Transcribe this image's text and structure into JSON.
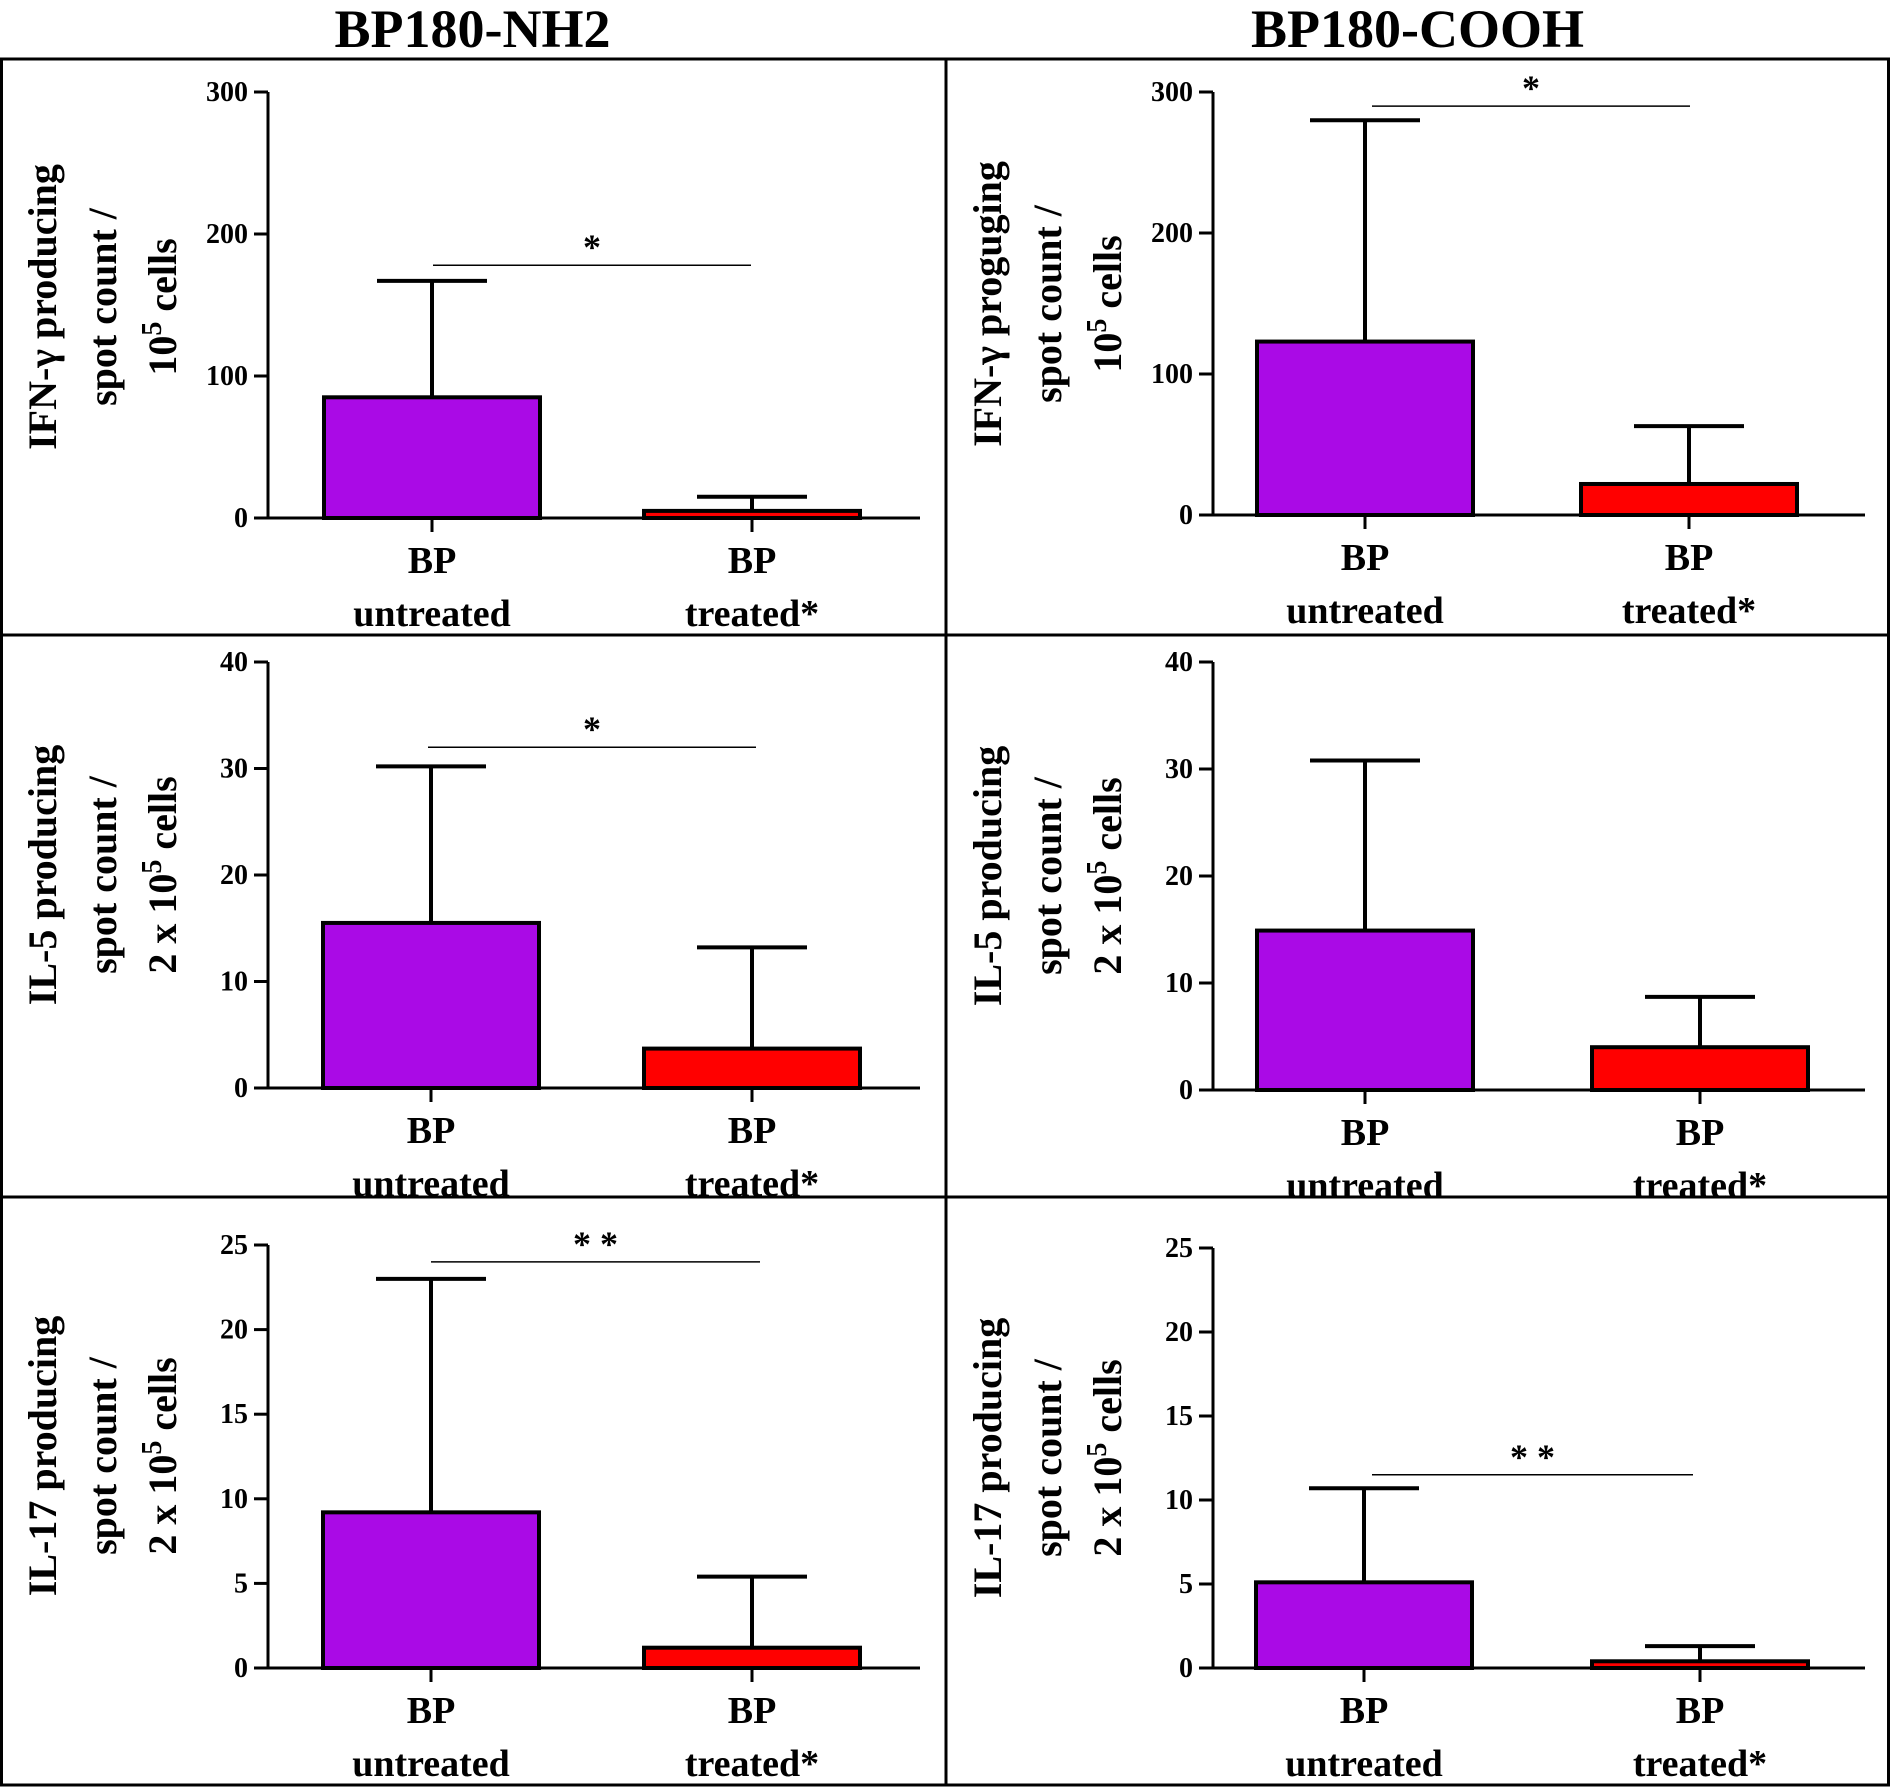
{
  "column_titles": [
    "BP180-NH2",
    "BP180-COOH"
  ],
  "colors": {
    "untreated": "#aa0ae6",
    "treated": "#ff0000",
    "outline": "#000000"
  },
  "chart_data": [
    {
      "type": "bar",
      "panel": "IFN-NH2",
      "categories": [
        [
          "BP",
          "untreated"
        ],
        [
          "BP",
          "treated*"
        ]
      ],
      "values": [
        85,
        5
      ],
      "error_upper": [
        167,
        15
      ],
      "ylabel": [
        "IFN-γ producing",
        "spot count /",
        "10^5 cells"
      ],
      "ylim": [
        0,
        300
      ],
      "ticks": [
        0,
        100,
        200,
        300
      ],
      "significance": {
        "label": "*",
        "y": 178
      }
    },
    {
      "type": "bar",
      "panel": "IFN-COOH",
      "categories": [
        [
          "BP",
          "untreated"
        ],
        [
          "BP",
          "treated*"
        ]
      ],
      "values": [
        123,
        22
      ],
      "error_upper": [
        280,
        63
      ],
      "ylabel": [
        "IFN-γ proguging",
        "spot count /",
        "10^5 cells"
      ],
      "ylim": [
        0,
        300
      ],
      "ticks": [
        0,
        100,
        200,
        300
      ],
      "significance": {
        "label": "*",
        "y": 290
      }
    },
    {
      "type": "bar",
      "panel": "IL5-NH2",
      "categories": [
        [
          "BP",
          "untreated"
        ],
        [
          "BP",
          "treated*"
        ]
      ],
      "values": [
        15.5,
        3.7
      ],
      "error_upper": [
        30.2,
        13.2
      ],
      "ylabel": [
        "IL-5 producing",
        "spot count /",
        "2 x 10^5 cells"
      ],
      "ylim": [
        0,
        40
      ],
      "ticks": [
        0,
        10,
        20,
        30,
        40
      ],
      "significance": {
        "label": "*",
        "y": 32
      }
    },
    {
      "type": "bar",
      "panel": "IL5-COOH",
      "categories": [
        [
          "BP",
          "untreated"
        ],
        [
          "BP",
          "treated*"
        ]
      ],
      "values": [
        14.9,
        4.0
      ],
      "error_upper": [
        30.8,
        8.7
      ],
      "ylabel": [
        "IL-5 producing",
        "spot count /",
        "2 x 10^5 cells"
      ],
      "ylim": [
        0,
        40
      ],
      "ticks": [
        0,
        10,
        20,
        30,
        40
      ]
    },
    {
      "type": "bar",
      "panel": "IL17-NH2",
      "categories": [
        [
          "BP",
          "untreated"
        ],
        [
          "BP",
          "treated*"
        ]
      ],
      "values": [
        9.2,
        1.2
      ],
      "error_upper": [
        23,
        5.4
      ],
      "ylabel": [
        "IL-17 producing",
        "spot count /",
        "2 x 10^5 cells"
      ],
      "ylim": [
        0,
        25
      ],
      "ticks": [
        0,
        5,
        10,
        15,
        20,
        25
      ],
      "significance": {
        "label": "* *",
        "y": 24.0
      }
    },
    {
      "type": "bar",
      "panel": "IL17-COOH",
      "categories": [
        [
          "BP",
          "untreated"
        ],
        [
          "BP",
          "treated*"
        ]
      ],
      "values": [
        5.1,
        0.4
      ],
      "error_upper": [
        10.7,
        1.3
      ],
      "ylabel": [
        "IL-17 producing",
        "spot count /",
        "2 x 10^5 cells"
      ],
      "ylim": [
        0,
        25
      ],
      "ticks": [
        0,
        5,
        10,
        15,
        20,
        25
      ],
      "significance": {
        "label": "* *",
        "y": 11.5
      }
    }
  ]
}
